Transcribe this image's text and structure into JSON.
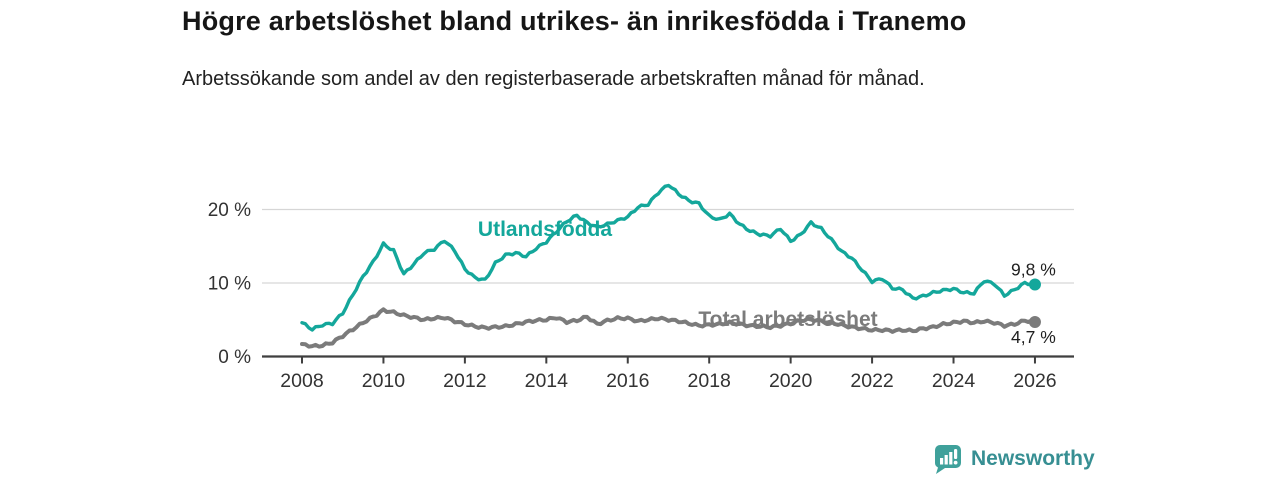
{
  "title": "Högre arbetslöshet bland utrikes- än inrikesfödda i Tranemo",
  "subtitle": "Arbetssökande som andel av den registerbaserade arbetskraften månad för månad.",
  "footer": {
    "brand": "Newsworthy",
    "logo_icon": "bar-chart-speech-bubble-icon",
    "brand_color": "#378f93",
    "logo_fill": "#3fa19b"
  },
  "colors": {
    "series_teal": "#14a79b",
    "series_gray": "#7b7b7b",
    "grid": "#d6d6d6",
    "axis": "#3f3f3f",
    "tick_text": "#333333",
    "value_label": "#1f1f1f"
  },
  "chart_data": {
    "type": "line",
    "title": "Högre arbetslöshet bland utrikes- än inrikesfödda i Tranemo",
    "subtitle": "Arbetssökande som andel av den registerbaserade arbetskraften månad för månad.",
    "xlabel": "",
    "ylabel": "",
    "grid": true,
    "legend_position": "inline-labels",
    "x_range": [
      2007.5,
      2026.9
    ],
    "ylim": [
      0,
      24
    ],
    "x_ticks": [
      2008,
      2010,
      2012,
      2014,
      2016,
      2018,
      2020,
      2022,
      2024,
      2026
    ],
    "y_ticks": [
      {
        "value": 0,
        "label": "0 %"
      },
      {
        "value": 10,
        "label": "10 %"
      },
      {
        "value": 20,
        "label": "20 %"
      }
    ],
    "x_start": 2008.0,
    "x_step": 0.25,
    "series": [
      {
        "name": "Utlandsfödda",
        "color": "#14a79b",
        "end_label": "9,8 %",
        "end_value": 9.8,
        "end_marker": true,
        "values": [
          4.6,
          3.7,
          4.3,
          4.5,
          5.9,
          8.4,
          10.9,
          12.9,
          15.3,
          14.4,
          11.2,
          12.6,
          14.1,
          14.6,
          15.8,
          14.4,
          11.9,
          10.7,
          10.4,
          12.7,
          13.8,
          14.1,
          13.6,
          14.7,
          15.6,
          17.0,
          18.4,
          19.2,
          18.2,
          17.6,
          18.0,
          18.5,
          19.0,
          20.3,
          20.7,
          22.3,
          23.4,
          22.1,
          21.2,
          20.8,
          19.1,
          18.6,
          19.4,
          18.0,
          17.1,
          16.6,
          16.4,
          17.4,
          15.7,
          16.6,
          18.2,
          17.4,
          15.9,
          14.3,
          13.4,
          11.8,
          10.2,
          10.6,
          9.3,
          9.1,
          7.9,
          8.2,
          8.7,
          9.0,
          9.2,
          8.7,
          8.6,
          10.3,
          9.9,
          8.3,
          9.1,
          10.0,
          9.8
        ]
      },
      {
        "name": "Total arbetslöshet",
        "color": "#7b7b7b",
        "end_label": "4,7 %",
        "end_value": 4.7,
        "end_marker": true,
        "values": [
          1.7,
          1.4,
          1.5,
          1.9,
          2.8,
          3.7,
          4.6,
          5.4,
          6.3,
          6.0,
          5.6,
          5.3,
          5.0,
          5.2,
          5.3,
          4.8,
          4.4,
          4.1,
          3.9,
          4.0,
          4.1,
          4.4,
          4.7,
          4.9,
          5.0,
          5.3,
          4.7,
          4.9,
          5.4,
          4.4,
          4.9,
          5.2,
          5.2,
          4.8,
          5.0,
          5.2,
          5.0,
          4.8,
          4.5,
          4.2,
          4.3,
          4.4,
          4.6,
          4.4,
          4.2,
          4.1,
          4.0,
          4.2,
          4.5,
          4.9,
          5.1,
          4.8,
          4.6,
          4.3,
          4.0,
          3.8,
          3.6,
          3.6,
          3.5,
          3.6,
          3.5,
          3.8,
          4.0,
          4.4,
          4.6,
          4.8,
          4.6,
          4.8,
          4.6,
          4.2,
          4.4,
          4.9,
          4.7
        ]
      }
    ]
  }
}
